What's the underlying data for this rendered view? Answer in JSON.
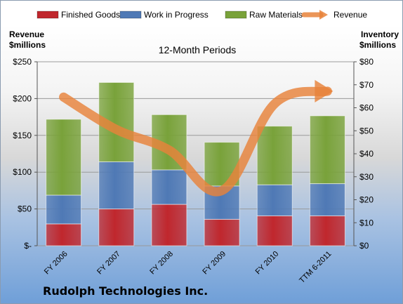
{
  "chart_data": {
    "type": "bar",
    "stacked": true,
    "title": "12-Month Periods",
    "company": "Rudolph Technologies Inc.",
    "categories": [
      "FY 2006",
      "FY 2007",
      "FY 2008",
      "FY 2009",
      "FY 2010",
      "TTM 6-2011"
    ],
    "left_axis": {
      "label_line1": "Revenue",
      "label_line2": "$millions",
      "range": [
        0,
        250
      ],
      "ticks": [
        0,
        50,
        100,
        150,
        200,
        250
      ],
      "tick_labels": [
        "$-",
        "$50",
        "$100",
        "$150",
        "$200",
        "$250"
      ]
    },
    "right_axis": {
      "label_line1": "Inventory",
      "label_line2": "$millions",
      "range": [
        0,
        80
      ],
      "ticks": [
        0,
        10,
        20,
        30,
        40,
        50,
        60,
        70,
        80
      ],
      "tick_labels": [
        "$0",
        "$10",
        "$20",
        "$30",
        "$40",
        "$50",
        "$60",
        "$70",
        "$80"
      ]
    },
    "series": [
      {
        "name": "Finished Goods",
        "axis": "right",
        "color": "#c0272d",
        "values": [
          9.5,
          16,
          18,
          11.5,
          13,
          13
        ]
      },
      {
        "name": "Work in Progress",
        "axis": "right",
        "color": "#4f79b5",
        "values": [
          12.5,
          20.5,
          15,
          14.5,
          13.5,
          14
        ]
      },
      {
        "name": "Raw Materials",
        "axis": "right",
        "color": "#79a23a",
        "values": [
          33,
          34.5,
          24,
          19,
          25.5,
          29.5
        ]
      },
      {
        "name": "Revenue",
        "axis": "left",
        "type": "line",
        "color": "#e8823a",
        "values": [
          202,
          158,
          130,
          75,
          193,
          210
        ]
      }
    ],
    "grid": true,
    "legend_position": "top"
  }
}
